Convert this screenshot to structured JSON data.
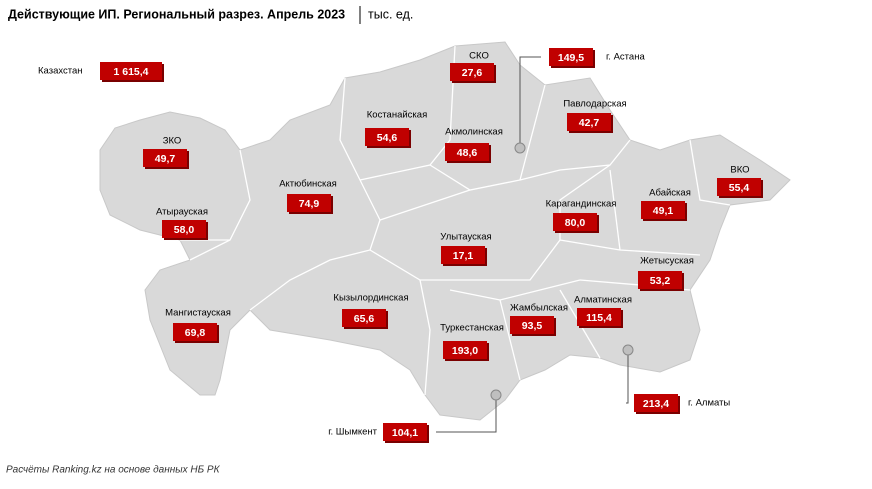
{
  "header": {
    "title": "Действующие ИП. Региональный разрез. Апрель 2023",
    "unit": "тыс. ед."
  },
  "total": {
    "name": "Казахстан",
    "value": "1 615,4"
  },
  "regions": [
    {
      "name": "СКО",
      "value": "27,6"
    },
    {
      "name": "Костанайская",
      "value": "54,6"
    },
    {
      "name": "Акмолинская",
      "value": "48,6"
    },
    {
      "name": "Павлодарская",
      "value": "42,7"
    },
    {
      "name": "ЗКО",
      "value": "49,7"
    },
    {
      "name": "Актюбинская",
      "value": "74,9"
    },
    {
      "name": "Атырауская",
      "value": "58,0"
    },
    {
      "name": "Карагандинская",
      "value": "80,0"
    },
    {
      "name": "Абайская",
      "value": "49,1"
    },
    {
      "name": "ВКО",
      "value": "55,4"
    },
    {
      "name": "Улытауская",
      "value": "17,1"
    },
    {
      "name": "Жетысуская",
      "value": "53,2"
    },
    {
      "name": "Мангистауская",
      "value": "69,8"
    },
    {
      "name": "Кызылординская",
      "value": "65,6"
    },
    {
      "name": "Жамбылская",
      "value": "93,5"
    },
    {
      "name": "Алматинская",
      "value": "115,4"
    },
    {
      "name": "Туркестанская",
      "value": "193,0"
    }
  ],
  "cities": [
    {
      "name": "г. Астана",
      "value": "149,5"
    },
    {
      "name": "г. Алматы",
      "value": "213,4"
    },
    {
      "name": "г. Шымкент",
      "value": "104,1"
    }
  ],
  "footer": {
    "source": "Расчёты Ranking.kz на основе данных НБ РК"
  }
}
